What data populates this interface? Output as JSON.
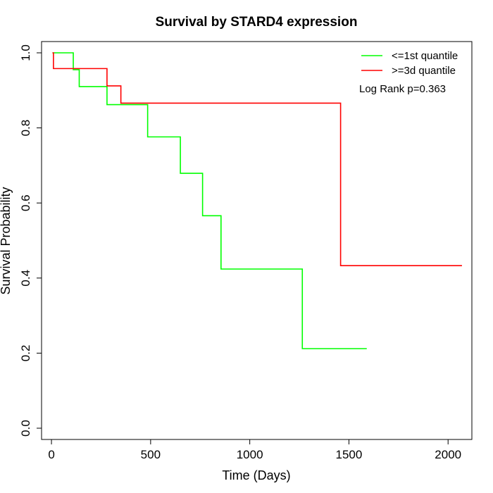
{
  "chart_data": {
    "type": "line",
    "title": "Survival by STARD4 expression",
    "xlabel": "Time (Days)",
    "ylabel": "Survival Probability",
    "xlim": [
      -50,
      2120
    ],
    "ylim": [
      -0.03,
      1.03
    ],
    "x_ticks": [
      0,
      500,
      1000,
      1500,
      2000
    ],
    "y_ticks": [
      0.0,
      0.2,
      0.4,
      0.6,
      0.8,
      1.0
    ],
    "x_tick_labels": [
      "0",
      "500",
      "1000",
      "1500",
      "2000"
    ],
    "y_tick_labels": [
      "0.0",
      "0.2",
      "0.4",
      "0.6",
      "0.8",
      "1.0"
    ],
    "grid": false,
    "legend_position": "top-right",
    "annotation": "Log Rank p=0.363",
    "series": [
      {
        "name": "<=1st quantile",
        "color": "#00ff00",
        "steps": [
          [
            5,
            1.0
          ],
          [
            110,
            0.955
          ],
          [
            140,
            0.91
          ],
          [
            280,
            0.862
          ],
          [
            485,
            0.776
          ],
          [
            650,
            0.679
          ],
          [
            762,
            0.566
          ],
          [
            855,
            0.424
          ],
          [
            1265,
            0.212
          ],
          [
            1590,
            0.212
          ]
        ]
      },
      {
        "name": ">=3d quantile",
        "color": "#ff0000",
        "steps": [
          [
            5,
            1.0
          ],
          [
            10,
            0.958
          ],
          [
            280,
            0.912
          ],
          [
            350,
            0.866
          ],
          [
            1458,
            0.433
          ],
          [
            2070,
            0.433
          ]
        ]
      }
    ]
  }
}
